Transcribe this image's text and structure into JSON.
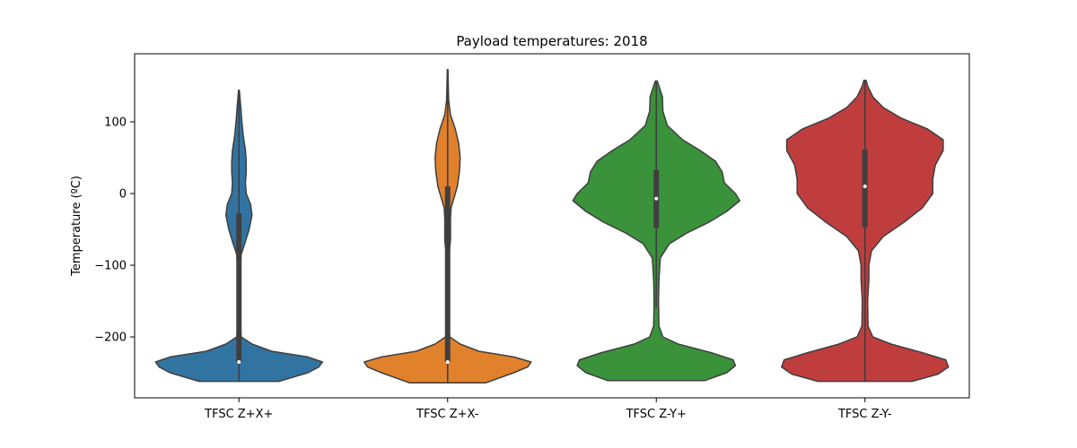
{
  "chart_data": {
    "type": "violin",
    "title": "Payload temperatures: 2018",
    "xlabel": "",
    "ylabel": "Temperature (ºC)",
    "ylim": [
      -285,
      195
    ],
    "yticks": [
      -200,
      -100,
      0,
      100
    ],
    "grid": false,
    "categories": [
      "TFSC Z+X+",
      "TFSC Z+X-",
      "TFSC Z-Y+",
      "TFSC Z-Y-"
    ],
    "colors": [
      "#3274a1",
      "#e1812c",
      "#3a923a",
      "#c03d3e"
    ],
    "series": [
      {
        "category": "TFSC Z+X+",
        "min": -262,
        "max": 144,
        "q1": -235,
        "median": -235,
        "q3": -28,
        "whisker_low": -262,
        "whisker_high": 144,
        "density_profile": [
          [
            -262,
            55
          ],
          [
            -250,
            95
          ],
          [
            -242,
            110
          ],
          [
            -235,
            115
          ],
          [
            -228,
            95
          ],
          [
            -220,
            45
          ],
          [
            -210,
            18
          ],
          [
            -200,
            3
          ],
          [
            -185,
            1.8
          ],
          [
            -150,
            1.4
          ],
          [
            -110,
            1.6
          ],
          [
            -85,
            3
          ],
          [
            -70,
            8
          ],
          [
            -50,
            14
          ],
          [
            -30,
            18
          ],
          [
            -15,
            16
          ],
          [
            0,
            10
          ],
          [
            15,
            9
          ],
          [
            30,
            10
          ],
          [
            45,
            10
          ],
          [
            60,
            9
          ],
          [
            80,
            6
          ],
          [
            100,
            4
          ],
          [
            120,
            2.5
          ],
          [
            144,
            0.5
          ]
        ]
      },
      {
        "category": "TFSC Z+X-",
        "min": -264,
        "max": 173,
        "q1": -235,
        "median": -235,
        "q3": 10,
        "whisker_low": -264,
        "whisker_high": 173,
        "density_profile": [
          [
            -264,
            55
          ],
          [
            -250,
            95
          ],
          [
            -242,
            115
          ],
          [
            -235,
            120
          ],
          [
            -228,
            95
          ],
          [
            -220,
            45
          ],
          [
            -210,
            18
          ],
          [
            -200,
            3
          ],
          [
            -185,
            1.6
          ],
          [
            -150,
            1.4
          ],
          [
            -110,
            1.8
          ],
          [
            -80,
            2.5
          ],
          [
            -65,
            4
          ],
          [
            -50,
            4
          ],
          [
            -35,
            4
          ],
          [
            -20,
            5
          ],
          [
            -10,
            8
          ],
          [
            0,
            11
          ],
          [
            10,
            14
          ],
          [
            30,
            17
          ],
          [
            50,
            18
          ],
          [
            70,
            16
          ],
          [
            90,
            11
          ],
          [
            110,
            4
          ],
          [
            130,
            1.5
          ],
          [
            150,
            1
          ],
          [
            173,
            0.5
          ]
        ]
      },
      {
        "category": "TFSC Z-Y+",
        "min": -261,
        "max": 157,
        "q1": -48,
        "median": -7,
        "q3": 33,
        "whisker_low": -160,
        "whisker_high": 157,
        "density_profile": [
          [
            -261,
            22
          ],
          [
            -250,
            32
          ],
          [
            -240,
            36
          ],
          [
            -232,
            35
          ],
          [
            -222,
            25
          ],
          [
            -210,
            10
          ],
          [
            -200,
            3
          ],
          [
            -185,
            1.2
          ],
          [
            -150,
            1
          ],
          [
            -120,
            1.2
          ],
          [
            -90,
            1.8
          ],
          [
            -70,
            6
          ],
          [
            -55,
            14
          ],
          [
            -40,
            24
          ],
          [
            -25,
            32
          ],
          [
            -10,
            38
          ],
          [
            0,
            36
          ],
          [
            15,
            31
          ],
          [
            30,
            30
          ],
          [
            45,
            27
          ],
          [
            60,
            20
          ],
          [
            75,
            12
          ],
          [
            95,
            5
          ],
          [
            115,
            3
          ],
          [
            135,
            2.8
          ],
          [
            150,
            1.2
          ],
          [
            157,
            0.4
          ]
        ]
      },
      {
        "category": "TFSC Z-Y-",
        "min": -262,
        "max": 158,
        "q1": -47,
        "median": 10,
        "q3": 61,
        "whisker_low": -262,
        "whisker_high": 158,
        "density_profile": [
          [
            -262,
            18
          ],
          [
            -252,
            28
          ],
          [
            -242,
            32
          ],
          [
            -232,
            31
          ],
          [
            -222,
            22
          ],
          [
            -210,
            10
          ],
          [
            -200,
            3
          ],
          [
            -185,
            1.2
          ],
          [
            -150,
            1
          ],
          [
            -120,
            1.5
          ],
          [
            -100,
            1.5
          ],
          [
            -80,
            2.5
          ],
          [
            -60,
            7
          ],
          [
            -40,
            15
          ],
          [
            -20,
            22
          ],
          [
            0,
            26
          ],
          [
            20,
            26
          ],
          [
            40,
            27
          ],
          [
            60,
            30
          ],
          [
            75,
            30
          ],
          [
            90,
            24
          ],
          [
            105,
            14
          ],
          [
            120,
            7
          ],
          [
            135,
            3
          ],
          [
            150,
            1
          ],
          [
            158,
            0.4
          ]
        ]
      }
    ]
  }
}
